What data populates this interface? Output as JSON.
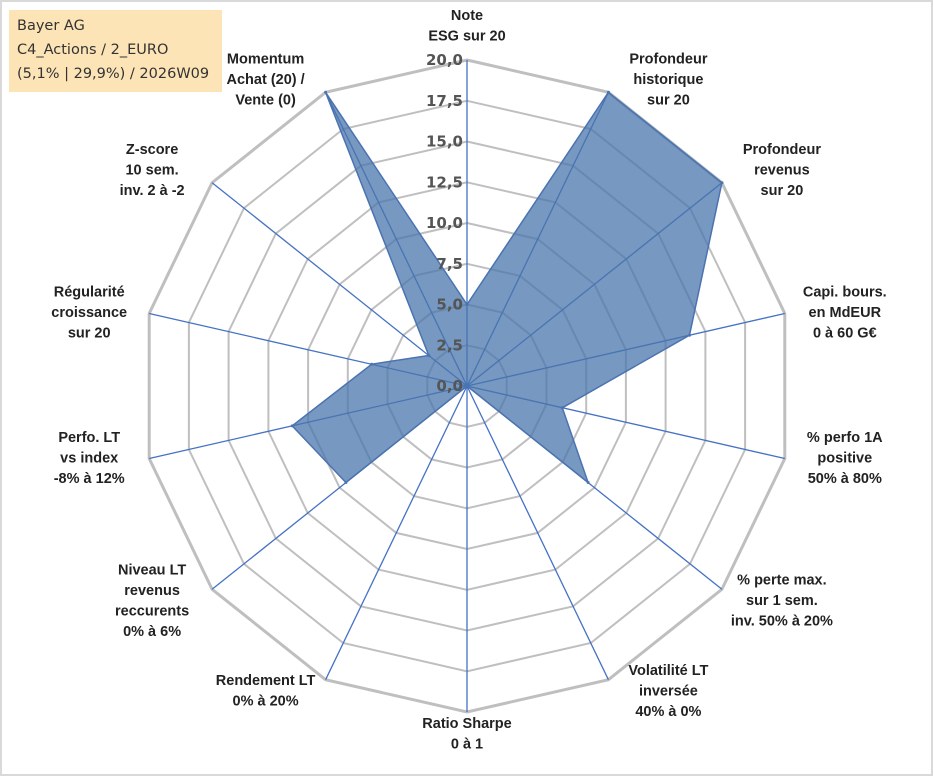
{
  "info": {
    "line1": "Bayer AG",
    "line2": "C4_Actions / 2_EURO",
    "line3": "(5,1% | 29,9%) / 2026W09"
  },
  "chart_data": {
    "type": "radar",
    "rmax": 20,
    "tick_labels": [
      "0,0",
      "2,5",
      "5,0",
      "7,5",
      "10,0",
      "12,5",
      "15,0",
      "17,5",
      "20,0"
    ],
    "axes": [
      [
        "Note",
        "ESG sur 20"
      ],
      [
        "Profondeur",
        "historique",
        "sur 20"
      ],
      [
        "Profondeur",
        "revenus",
        "sur 20"
      ],
      [
        "Capi. bours.",
        "en MdEUR",
        "0 à 60 G€"
      ],
      [
        "% perfo 1A",
        "positive",
        "50% à 80%"
      ],
      [
        "% perte max.",
        "sur 1 sem.",
        "inv. 50% à 20%"
      ],
      [
        "Volatilité LT",
        "inversée",
        "40% à 0%"
      ],
      [
        "Ratio Sharpe",
        "0 à 1"
      ],
      [
        "Rendement LT",
        "0% à 20%"
      ],
      [
        "Niveau LT",
        "revenus",
        "reccurents",
        "0% à 6%"
      ],
      [
        "Perfo. LT",
        "vs index",
        "-8% à 12%"
      ],
      [
        "Régularité",
        "croissance",
        "sur 20"
      ],
      [
        "Z-score",
        "10 sem.",
        "inv. 2 à -2"
      ],
      [
        "Momentum",
        "Achat (20) /",
        "Vente (0)"
      ]
    ],
    "values": [
      5.0,
      20.0,
      20.0,
      14.0,
      6.0,
      9.5,
      0.0,
      0.0,
      0.0,
      9.5,
      11.0,
      6.0,
      3.0,
      20.0
    ],
    "colors": {
      "fill": "#4a75ac",
      "stroke": "#4a73b0",
      "grid": "#bfbfbf",
      "spoke": "#4472c4"
    }
  }
}
